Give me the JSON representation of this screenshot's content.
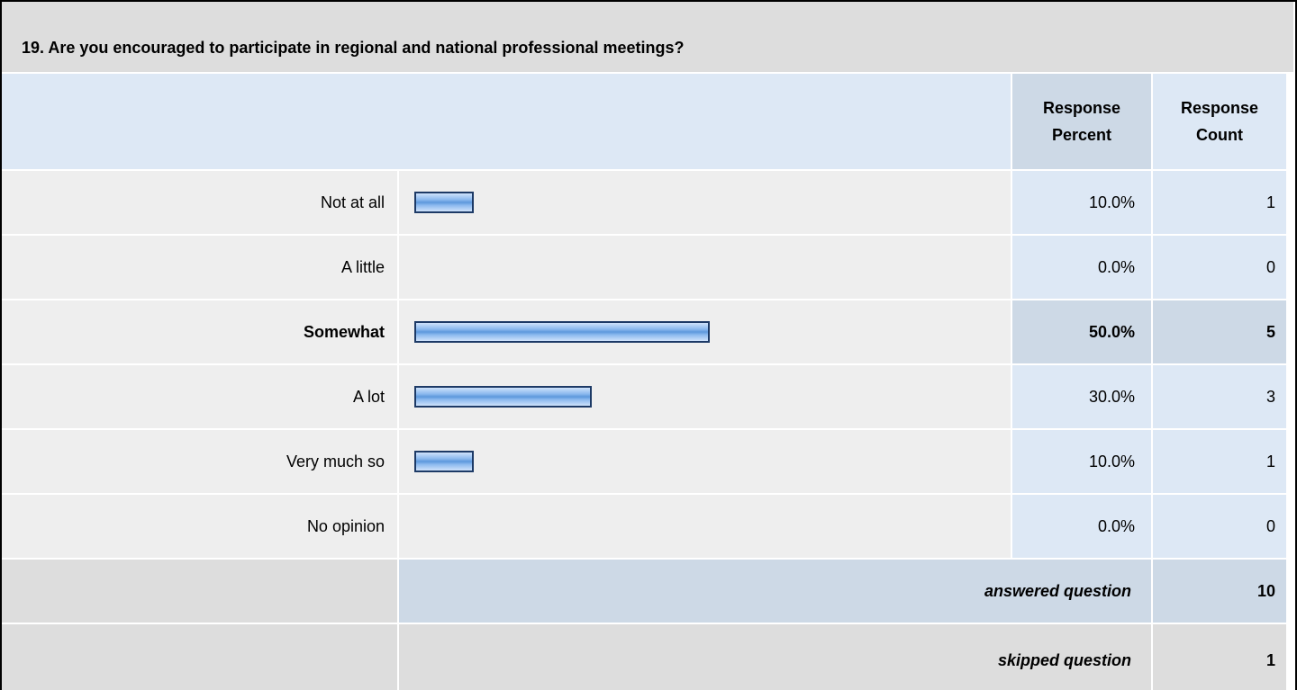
{
  "title": "19. Are you encouraged to participate in regional and national professional meetings?",
  "table": {
    "headers": [
      "Response Percent",
      "Response Count"
    ],
    "rows": [
      {
        "label": "Not at all",
        "percent": 10,
        "percent_label": "10.0%",
        "count": 1
      },
      {
        "label": "A little",
        "percent": 0,
        "percent_label": "0.0%",
        "count": 0
      },
      {
        "label": "Somewhat",
        "percent": 50,
        "percent_label": "50.0%",
        "count": 5
      },
      {
        "label": "A lot",
        "percent": 30,
        "percent_label": "30.0%",
        "count": 3
      },
      {
        "label": "Very much so",
        "percent": 10,
        "percent_label": "10.0%",
        "count": 1
      },
      {
        "label": "No opinion",
        "percent": 0,
        "percent_label": "0.0%",
        "count": 0
      }
    ],
    "answered": {
      "label": "answered question",
      "count": 10
    },
    "skipped": {
      "label": "skipped question",
      "count": 1
    }
  }
}
